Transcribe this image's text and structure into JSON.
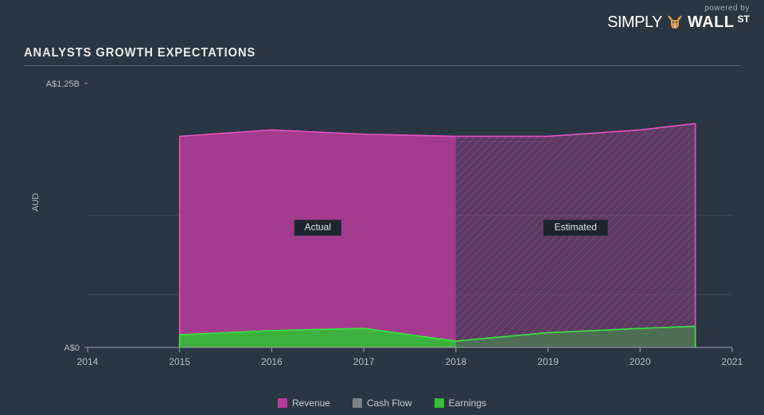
{
  "logo": {
    "powered": "powered by",
    "part1": "SIMPLY",
    "part2": "WALL",
    "part3": "ST"
  },
  "title": "ANALYSTS GROWTH EXPECTATIONS",
  "chart": {
    "type": "area",
    "background_color": "#2a3642",
    "grid_color": "#3d4852",
    "axis_color": "#9aa2aa",
    "y_title": "AUD",
    "x_ticks": [
      2014,
      2015,
      2016,
      2017,
      2018,
      2019,
      2020,
      2021
    ],
    "xlim": [
      2014,
      2021
    ],
    "y_ticks": [
      {
        "value": 0,
        "label": "A$0"
      },
      {
        "value": 1.25,
        "label": "A$1.25B"
      }
    ],
    "ylim": [
      0,
      1.25
    ],
    "grid_y_lines": [
      0.25,
      0.625
    ],
    "actual_end_x": 2018,
    "estimated_end_x": 2020.6,
    "regions": {
      "actual": "Actual",
      "estimated": "Estimated"
    },
    "series": [
      {
        "name": "Revenue",
        "color": "#b43d9a",
        "stroke": "#e653c1",
        "points": [
          {
            "x": 2015,
            "y": 1.0
          },
          {
            "x": 2016,
            "y": 1.03
          },
          {
            "x": 2017,
            "y": 1.01
          },
          {
            "x": 2018,
            "y": 1.0
          },
          {
            "x": 2019,
            "y": 1.0
          },
          {
            "x": 2020,
            "y": 1.03
          },
          {
            "x": 2020.6,
            "y": 1.06
          }
        ]
      },
      {
        "name": "Cash Flow",
        "color": "#7a8087",
        "stroke": "#9aa2aa",
        "points": []
      },
      {
        "name": "Earnings",
        "color": "#2fc133",
        "stroke": "#3ae63f",
        "points": [
          {
            "x": 2015,
            "y": 0.06
          },
          {
            "x": 2016,
            "y": 0.08
          },
          {
            "x": 2017,
            "y": 0.09
          },
          {
            "x": 2018,
            "y": 0.03
          },
          {
            "x": 2019,
            "y": 0.07
          },
          {
            "x": 2020,
            "y": 0.09
          },
          {
            "x": 2020.6,
            "y": 0.1
          }
        ]
      }
    ],
    "legend": [
      "Revenue",
      "Cash Flow",
      "Earnings"
    ],
    "legend_colors": [
      "#b43d9a",
      "#7a8087",
      "#2fc133"
    ],
    "hatch_color": "#5a6470",
    "estimated_fill_opacity": 0.4
  },
  "fontsize": {
    "title": 16,
    "axis": 11,
    "tick": 12,
    "legend": 12
  }
}
